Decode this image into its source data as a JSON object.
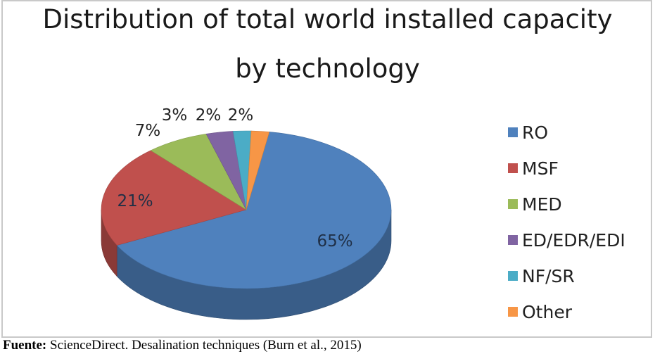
{
  "chart_data": {
    "type": "pie",
    "title_line1": "Distribution of total world installed capacity",
    "title_line2": "by technology",
    "slices": [
      {
        "label": "RO",
        "value": 65,
        "value_label": "65%",
        "color": "#4f81bd"
      },
      {
        "label": "MSF",
        "value": 21,
        "value_label": "21%",
        "color": "#c0504d"
      },
      {
        "label": "MED",
        "value": 7,
        "value_label": "7%",
        "color": "#9bbb59"
      },
      {
        "label": "ED/EDR/EDI",
        "value": 3,
        "value_label": "3%",
        "color": "#8064a2"
      },
      {
        "label": "NF/SR",
        "value": 2,
        "value_label": "2%",
        "color": "#4bacc6"
      },
      {
        "label": "Other",
        "value": 2,
        "value_label": "2%",
        "color": "#f79646"
      }
    ],
    "legend_position": "right",
    "style": "3D"
  },
  "caption": {
    "bold": "Fuente:",
    "text": " ScienceDirect. Desalination techniques (Burn et al., 2015)"
  }
}
